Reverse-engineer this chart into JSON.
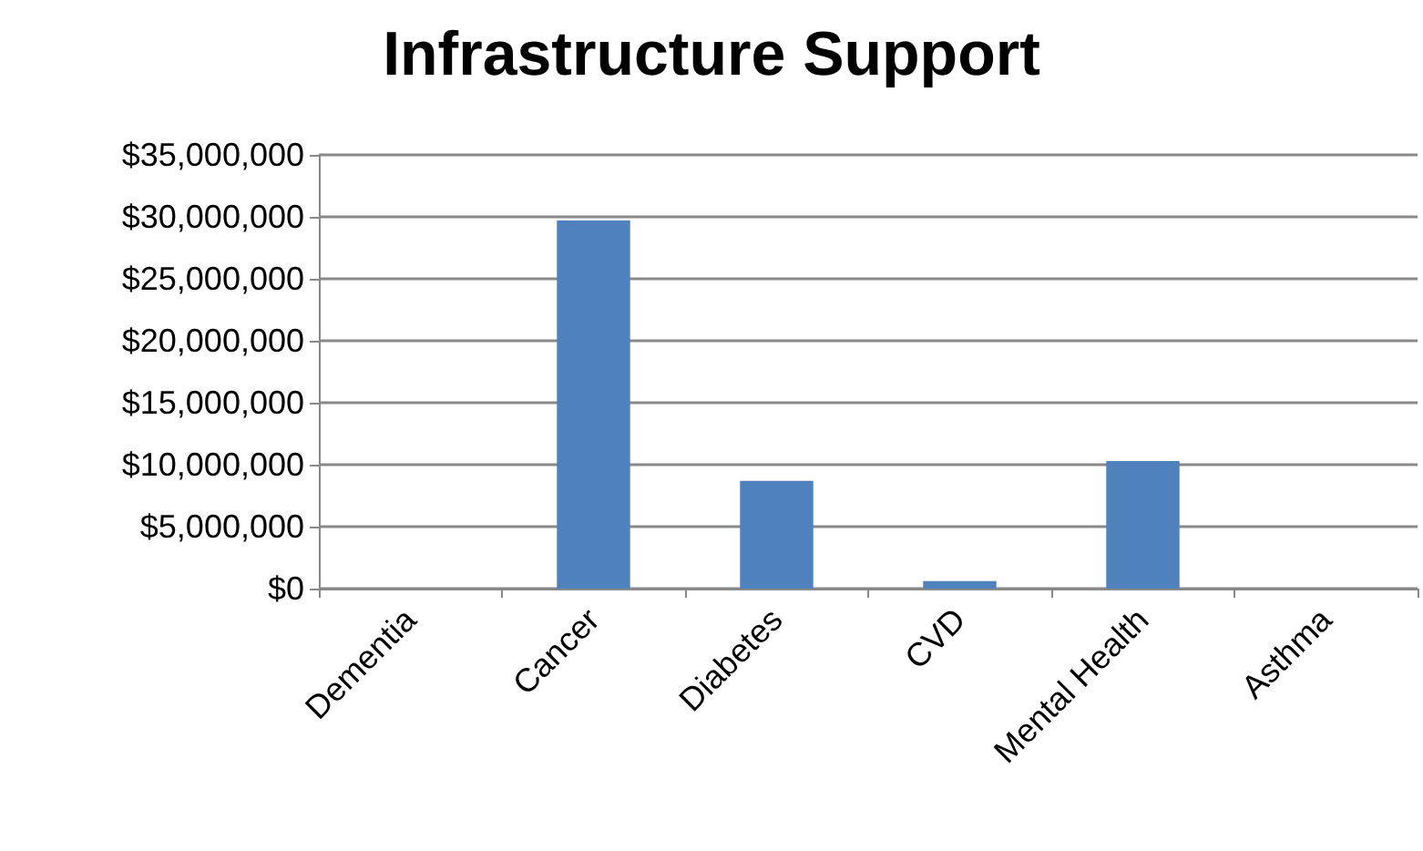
{
  "chart_data": {
    "type": "bar",
    "title": "Infrastructure Support",
    "categories": [
      "Dementia",
      "Cancer",
      "Diabetes",
      "CVD",
      "Mental Health",
      "Asthma"
    ],
    "values": [
      0,
      29700000,
      8700000,
      600000,
      10300000,
      0
    ],
    "color": "#4f81bd",
    "ylim": [
      0,
      35000000
    ],
    "yticks": [
      {
        "value": 0,
        "label": "$0"
      },
      {
        "value": 5000000,
        "label": "$5,000,000"
      },
      {
        "value": 10000000,
        "label": "$10,000,000"
      },
      {
        "value": 15000000,
        "label": "$15,000,000"
      },
      {
        "value": 20000000,
        "label": "$20,000,000"
      },
      {
        "value": 25000000,
        "label": "$25,000,000"
      },
      {
        "value": 30000000,
        "label": "$30,000,000"
      },
      {
        "value": 35000000,
        "label": "$35,000,000"
      }
    ],
    "grid": true
  }
}
